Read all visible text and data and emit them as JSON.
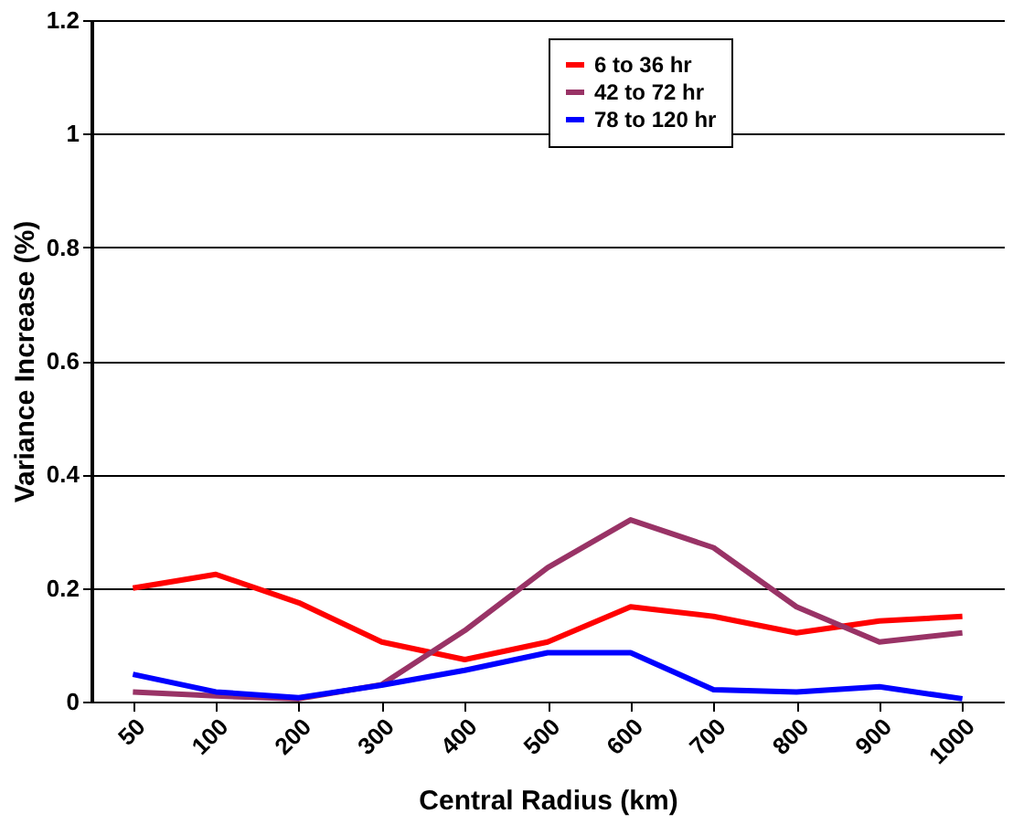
{
  "chart_data": {
    "type": "line",
    "xlabel": "Central Radius (km)",
    "ylabel": "Variance Increase (%)",
    "categories": [
      "50",
      "100",
      "200",
      "300",
      "400",
      "500",
      "600",
      "700",
      "800",
      "900",
      "1000"
    ],
    "series": [
      {
        "name": "6 to 36 hr",
        "color": "#ff0000",
        "values": [
          0.2,
          0.224,
          0.174,
          0.105,
          0.074,
          0.105,
          0.167,
          0.15,
          0.121,
          0.142,
          0.15
        ]
      },
      {
        "name": "42 to 72 hr",
        "color": "#993366",
        "values": [
          0.017,
          0.01,
          0.005,
          0.03,
          0.125,
          0.236,
          0.32,
          0.271,
          0.167,
          0.105,
          0.121
        ]
      },
      {
        "name": "78 to 120 hr",
        "color": "#0000ff",
        "values": [
          0.048,
          0.017,
          0.007,
          0.029,
          0.055,
          0.086,
          0.086,
          0.021,
          0.017,
          0.026,
          0.005
        ]
      }
    ],
    "ylim": [
      0,
      1.2
    ],
    "yticks": [
      0,
      0.2,
      0.4,
      0.6,
      0.8,
      1,
      1.2
    ],
    "grid": "y",
    "legend": "top right",
    "marker": "none",
    "line_style": "solid"
  }
}
